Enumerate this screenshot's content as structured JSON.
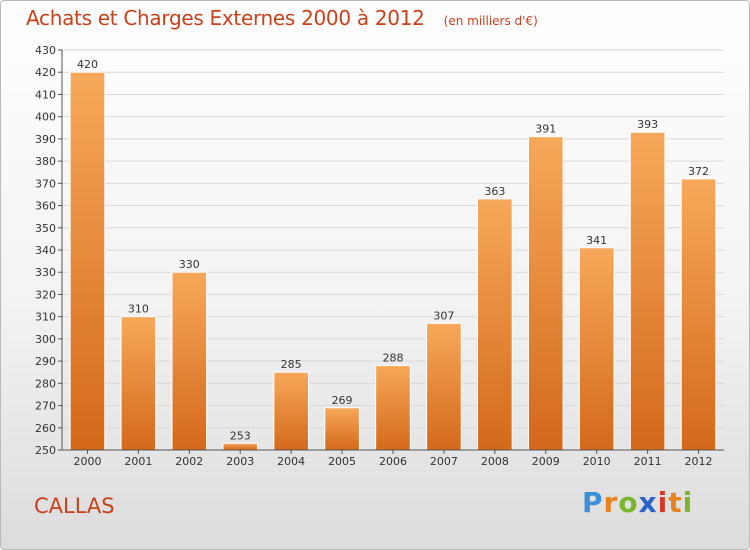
{
  "header": {
    "title": "Achats et Charges Externes 2000 à 2012",
    "unit": "(en milliers d'€)"
  },
  "commune": "CALLAS",
  "logo": {
    "text": "Proxiti",
    "letters": [
      "P",
      "r",
      "o",
      "x",
      "i",
      "t",
      "i"
    ],
    "colors": [
      "#3c8fd6",
      "#e8821e",
      "#7ab52a",
      "#2a63c8",
      "#d43a2a",
      "#e8821e",
      "#7ab52a"
    ]
  },
  "colors": {
    "title": "#c9401a",
    "bar_top": "#f7a85a",
    "bar_bottom": "#d4691a",
    "grid": "#d8d8d8",
    "axis": "#555555"
  },
  "chart_data": {
    "type": "bar",
    "title": "Achats et Charges Externes 2000 à 2012",
    "subtitle": "(en milliers d'€)",
    "categories": [
      "2000",
      "2001",
      "2002",
      "2003",
      "2004",
      "2005",
      "2006",
      "2007",
      "2008",
      "2009",
      "2010",
      "2011",
      "2012"
    ],
    "values": [
      420,
      310,
      330,
      253,
      285,
      269,
      288,
      307,
      363,
      391,
      341,
      393,
      372
    ],
    "ylim": [
      250,
      430
    ],
    "ytick_step": 10,
    "grid": true,
    "data_labels": true,
    "xlabel": "",
    "ylabel": ""
  }
}
